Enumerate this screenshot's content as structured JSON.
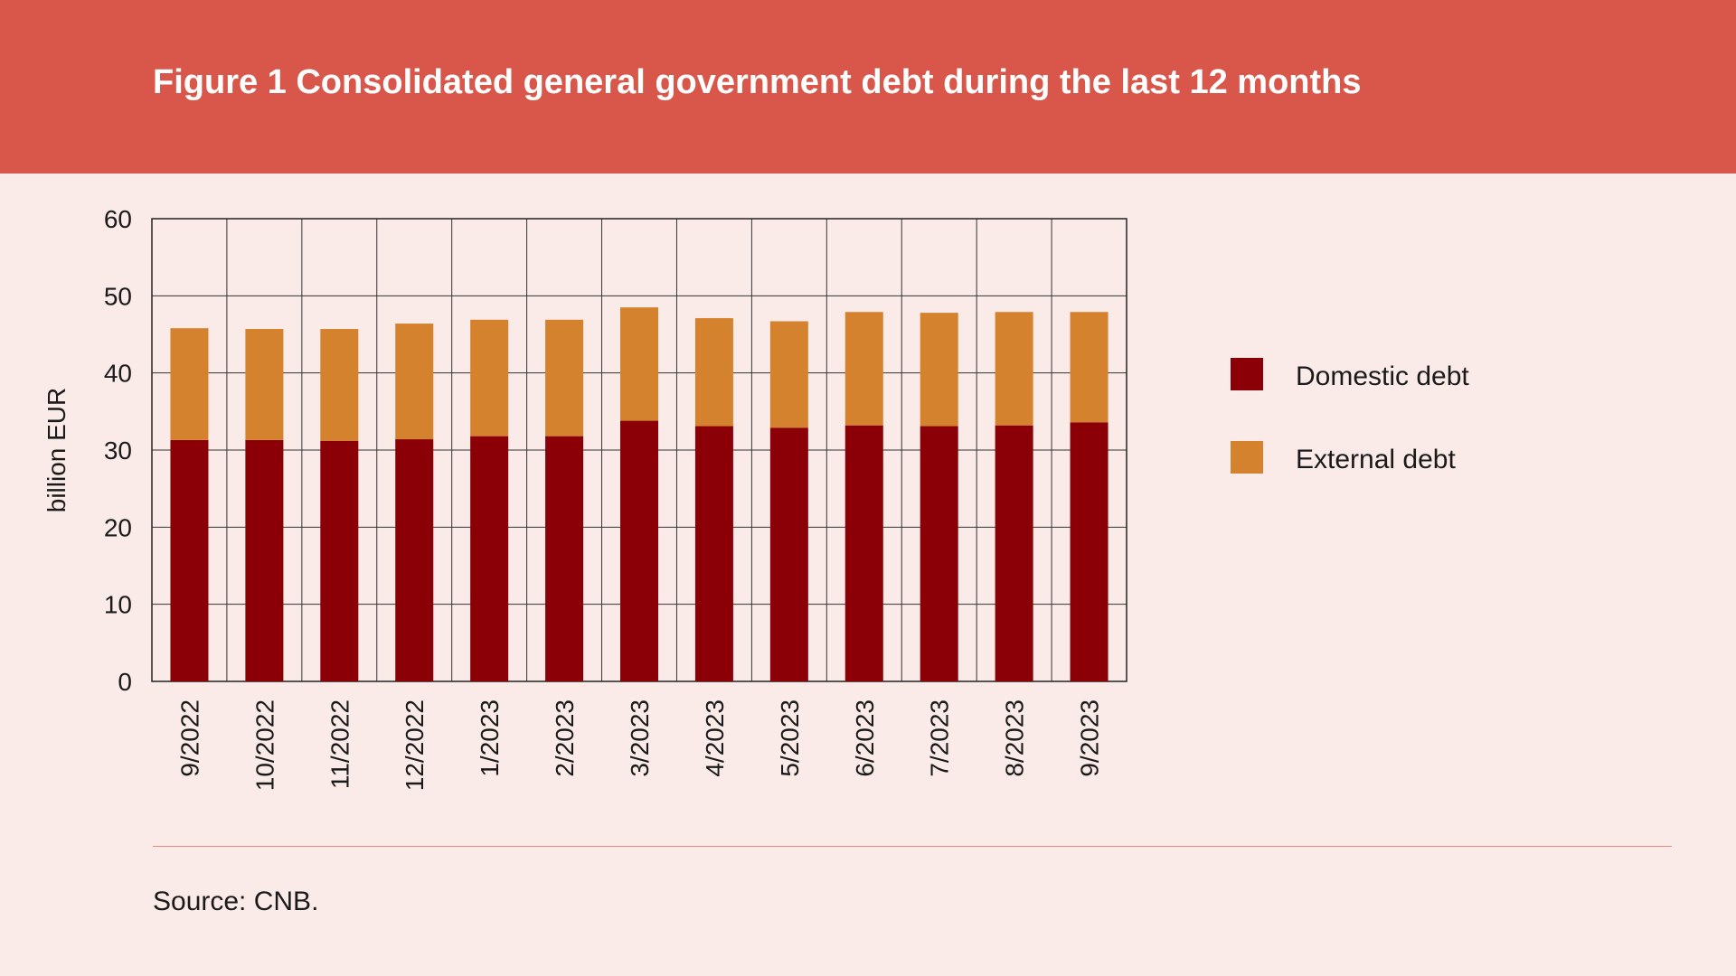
{
  "header": {
    "title": "Figure 1 Consolidated general government debt during the last 12 months"
  },
  "source": "Source: CNB.",
  "colors": {
    "header_bg": "#d9574a",
    "page_bg": "#fbebe8",
    "domestic": "#8b0006",
    "external": "#d5822e"
  },
  "chart_data": {
    "type": "bar",
    "stacked": true,
    "categories": [
      "9/2022",
      "10/2022",
      "11/2022",
      "12/2022",
      "1/2023",
      "2/2023",
      "3/2023",
      "4/2023",
      "5/2023",
      "6/2023",
      "7/2023",
      "8/2023",
      "9/2023"
    ],
    "series": [
      {
        "name": "Domestic debt",
        "color": "#8b0006",
        "values": [
          31.3,
          31.3,
          31.2,
          31.4,
          31.8,
          31.8,
          33.8,
          33.1,
          32.9,
          33.2,
          33.1,
          33.2,
          33.6
        ]
      },
      {
        "name": "External debt",
        "color": "#d5822e",
        "values": [
          14.5,
          14.4,
          14.5,
          15.0,
          15.1,
          15.1,
          14.7,
          14.0,
          13.8,
          14.7,
          14.7,
          14.7,
          14.3
        ]
      }
    ],
    "ylabel": "billion EUR",
    "xlabel": "",
    "ylim": [
      0,
      60
    ],
    "yticks": [
      0,
      10,
      20,
      30,
      40,
      50,
      60
    ],
    "grid": true,
    "legend_position": "right"
  }
}
